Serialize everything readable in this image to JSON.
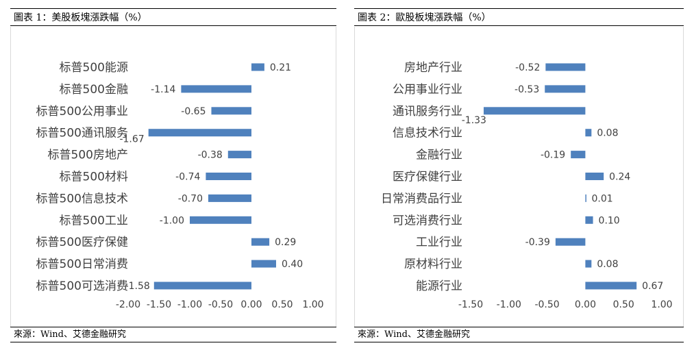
{
  "panels": [
    {
      "title": "圖表 1：美股板塊漲跌幅（%）",
      "source": "來源：Wind、艾德金融研究"
    },
    {
      "title": "圖表 2：歐股板塊漲跌幅（%）",
      "source": "來源：Wind、艾德金融研究"
    }
  ],
  "colors": {
    "bar": "#4f81bd",
    "text": "#404040"
  },
  "chart_data": [
    {
      "type": "bar",
      "orientation": "horizontal",
      "categories": [
        "标普500能源",
        "标普500金融",
        "标普500公用事业",
        "标普500通讯服务",
        "标普500房地产",
        "标普500材料",
        "标普500信息技术",
        "标普500工业",
        "标普500医疗保健",
        "标普500日常消费",
        "标普500可选消费"
      ],
      "values": [
        0.21,
        -1.14,
        -0.65,
        -1.67,
        -0.38,
        -0.74,
        -0.7,
        -1.0,
        0.29,
        0.4,
        -1.58
      ],
      "value_labels": [
        "0.21",
        "-1.14",
        "-0.65",
        "-1.67",
        "-0.38",
        "-0.74",
        "-0.70",
        "-1.00",
        "0.29",
        "0.40",
        "-1.58"
      ],
      "xlim": [
        -2.0,
        1.0
      ],
      "xticks": [
        "-2.00",
        "-1.50",
        "-1.00",
        "-0.50",
        "0.00",
        "0.50",
        "1.00"
      ],
      "grid": false
    },
    {
      "type": "bar",
      "orientation": "horizontal",
      "categories": [
        "房地产行业",
        "公用事业行业",
        "通讯服务行业",
        "信息技术行业",
        "金融行业",
        "医疗保健行业",
        "日常消费品行业",
        "可选消费行业",
        "工业行业",
        "原材料行业",
        "能源行业"
      ],
      "values": [
        -0.52,
        -0.53,
        -1.33,
        0.08,
        -0.19,
        0.24,
        0.01,
        0.1,
        -0.39,
        0.08,
        0.67
      ],
      "value_labels": [
        "-0.52",
        "-0.53",
        "-1.33",
        "0.08",
        "-0.19",
        "0.24",
        "0.01",
        "0.10",
        "-0.39",
        "0.08",
        "0.67"
      ],
      "xlim": [
        -1.5,
        1.0
      ],
      "xticks": [
        "-1.50",
        "-1.00",
        "-0.50",
        "0.00",
        "0.50",
        "1.00"
      ],
      "grid": false
    }
  ]
}
